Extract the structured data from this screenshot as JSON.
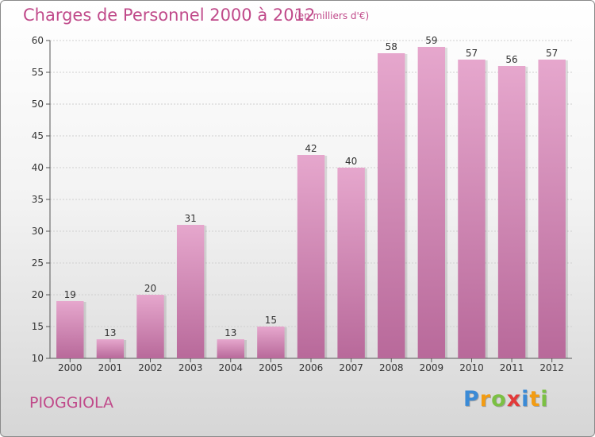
{
  "chart_data": {
    "type": "bar",
    "title": "Charges de Personnel 2000 à 2012",
    "subtitle": "(en milliers d'€)",
    "categories": [
      "2000",
      "2001",
      "2002",
      "2003",
      "2004",
      "2005",
      "2006",
      "2007",
      "2008",
      "2009",
      "2010",
      "2011",
      "2012"
    ],
    "values": [
      19,
      13,
      20,
      31,
      13,
      15,
      42,
      40,
      58,
      59,
      57,
      56,
      57
    ],
    "ylim": [
      10,
      60
    ],
    "yticks": [
      10,
      15,
      20,
      25,
      30,
      35,
      40,
      45,
      50,
      55,
      60
    ],
    "grid": true,
    "bar_color": "#d98fbd",
    "bar_color_top": "#e6a7cd",
    "bar_color_bottom": "#b8699a"
  },
  "footer": {
    "commune": "PIOGGIOLA",
    "logo_letters": [
      "P",
      "r",
      "o",
      "x",
      "i",
      "t",
      "i"
    ],
    "logo_colors": [
      "#3a8ad6",
      "#f39c12",
      "#7bc043",
      "#e23a3a",
      "#3a8ad6",
      "#f39c12",
      "#7bc043"
    ]
  }
}
